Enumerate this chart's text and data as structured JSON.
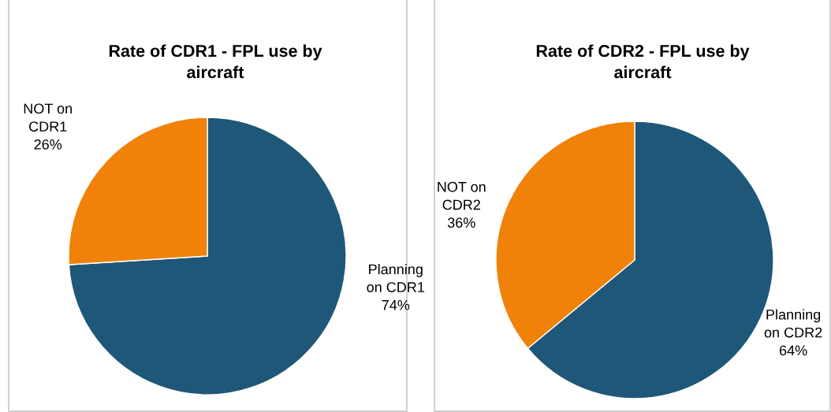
{
  "chart_data": [
    {
      "type": "pie",
      "title": "Rate of CDR1 - FPL use by\naircraft",
      "categories": [
        "Planning\non CDR1",
        "NOT on\nCDR1"
      ],
      "values": [
        74,
        26
      ],
      "colors": [
        "#1f5779",
        "#f0820a"
      ],
      "value_labels": [
        "74%",
        "26%"
      ],
      "legend": false
    },
    {
      "type": "pie",
      "title": "Rate of CDR2 - FPL use by\naircraft",
      "categories": [
        "Planning\non CDR2",
        "NOT on\nCDR2"
      ],
      "values": [
        64,
        36
      ],
      "colors": [
        "#1f5779",
        "#f0820a"
      ],
      "value_labels": [
        "64%",
        "36%"
      ],
      "legend": false
    }
  ]
}
